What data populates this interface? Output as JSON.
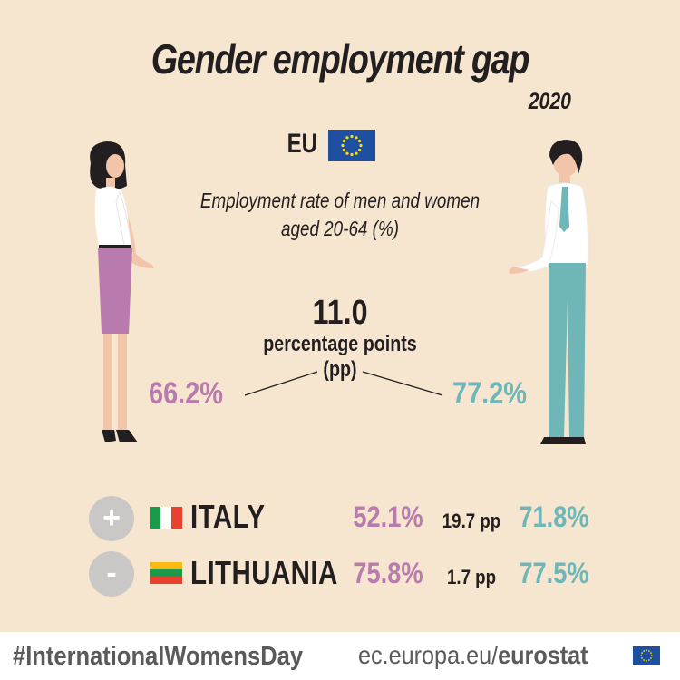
{
  "title": "Gender employment gap",
  "year": "2020",
  "region": {
    "label": "EU",
    "flag_icon": "eu-flag-icon"
  },
  "subtitle_line1": "Employment rate of men and women",
  "subtitle_line2": "aged 20-64 (%)",
  "gap": {
    "value": "11.0",
    "unit_line1": "percentage points",
    "unit_line2": "(pp)"
  },
  "eu_women_rate": "66.2%",
  "eu_men_rate": "77.2%",
  "countries": [
    {
      "sign": "+",
      "name": "ITALY",
      "flag_icon": "italy-flag-icon",
      "women": "52.1%",
      "gap": "19.7 pp",
      "men": "71.8%"
    },
    {
      "sign": "-",
      "name": "LITHUANIA",
      "flag_icon": "lithuania-flag-icon",
      "women": "75.8%",
      "gap": "1.7 pp",
      "men": "77.5%"
    }
  ],
  "footer": {
    "hashtag": "#InternationalWomensDay",
    "site_prefix": "ec.europa.eu/",
    "site_brand": "eurostat"
  },
  "colors": {
    "background": "#f6e6cf",
    "women": "#b97aad",
    "men": "#6fb6b8",
    "badge": "#c9c8c6",
    "eu_blue": "#1f4fa0",
    "eu_gold": "#ffdd00"
  }
}
